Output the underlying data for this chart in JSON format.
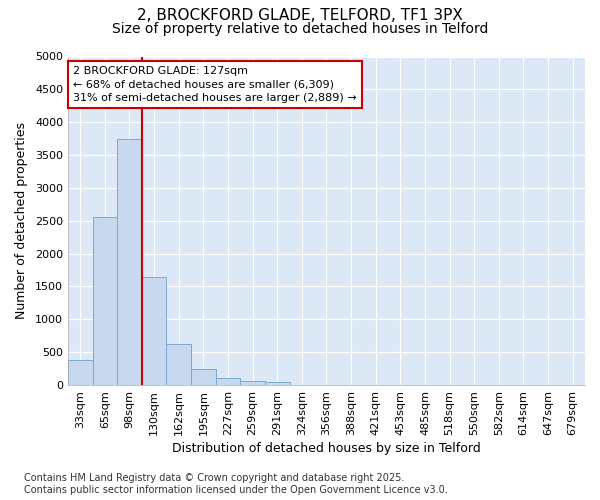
{
  "title_line1": "2, BROCKFORD GLADE, TELFORD, TF1 3PX",
  "title_line2": "Size of property relative to detached houses in Telford",
  "xlabel": "Distribution of detached houses by size in Telford",
  "ylabel": "Number of detached properties",
  "categories": [
    "33sqm",
    "65sqm",
    "98sqm",
    "130sqm",
    "162sqm",
    "195sqm",
    "227sqm",
    "259sqm",
    "291sqm",
    "324sqm",
    "356sqm",
    "388sqm",
    "421sqm",
    "453sqm",
    "485sqm",
    "518sqm",
    "550sqm",
    "582sqm",
    "614sqm",
    "647sqm",
    "679sqm"
  ],
  "values": [
    375,
    2550,
    3750,
    1650,
    620,
    240,
    110,
    60,
    50,
    0,
    0,
    0,
    0,
    0,
    0,
    0,
    0,
    0,
    0,
    0,
    0
  ],
  "bar_color": "#c8d8ee",
  "bar_edge_color": "#7aaad0",
  "vline_color": "#cc0000",
  "annotation_text_line1": "2 BROCKFORD GLADE: 127sqm",
  "annotation_text_line2": "← 68% of detached houses are smaller (6,309)",
  "annotation_text_line3": "31% of semi-detached houses are larger (2,889) →",
  "annotation_box_facecolor": "#ffffff",
  "annotation_box_edgecolor": "#cc0000",
  "ylim": [
    0,
    5000
  ],
  "yticks": [
    0,
    500,
    1000,
    1500,
    2000,
    2500,
    3000,
    3500,
    4000,
    4500,
    5000
  ],
  "figure_facecolor": "#ffffff",
  "plot_bg_color": "#dce8f5",
  "grid_color": "#ffffff",
  "title1_fontsize": 11,
  "title2_fontsize": 10,
  "tick_fontsize": 8,
  "label_fontsize": 9,
  "footer_fontsize": 7,
  "annotation_fontsize": 8,
  "footer_line1": "Contains HM Land Registry data © Crown copyright and database right 2025.",
  "footer_line2": "Contains public sector information licensed under the Open Government Licence v3.0."
}
